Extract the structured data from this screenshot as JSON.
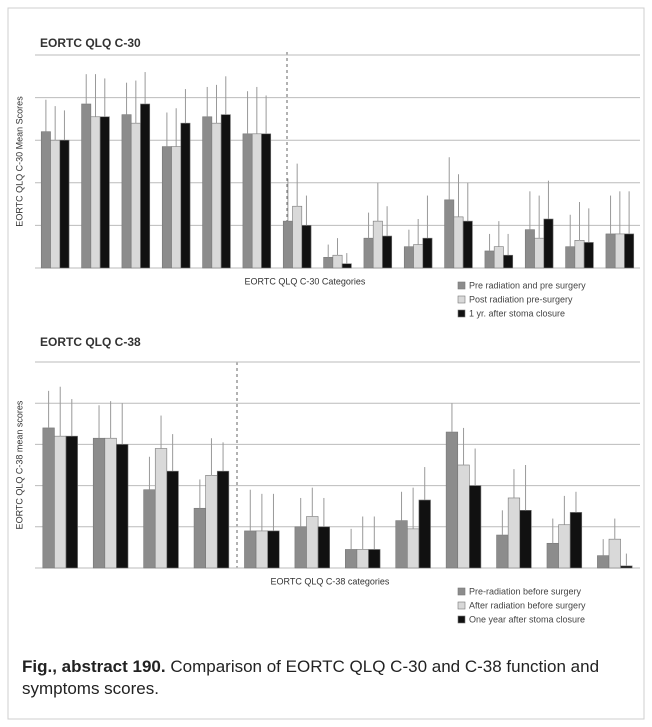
{
  "chart_data": [
    {
      "type": "bar",
      "title": "EORTC QLQ C-30",
      "ylabel": "EORTC QLQ C-30 Mean Scores",
      "xlabel": "EORTC QLQ C-30 Categories",
      "categories": [
        null,
        null,
        null,
        null,
        null,
        null,
        null,
        null,
        null,
        null,
        null,
        null,
        null,
        null,
        null
      ],
      "ylim": [
        0,
        100
      ],
      "gridlines": [
        0,
        20,
        40,
        60,
        80,
        100
      ],
      "series": [
        {
          "name": "Pre radiation and pre surgery",
          "color": "#8c8c8c",
          "values": [
            64,
            77,
            72,
            57,
            71,
            63,
            22,
            5,
            14,
            10,
            32,
            8,
            18,
            10,
            16
          ],
          "errors": [
            15,
            14,
            15,
            16,
            14,
            20,
            20,
            6,
            12,
            8,
            20,
            8,
            18,
            15,
            18
          ]
        },
        {
          "name": "Post radiation pre-surgery",
          "color": "#d9d9d9",
          "values": [
            60,
            71,
            68,
            57,
            68,
            63,
            29,
            6,
            22,
            11,
            24,
            10,
            14,
            13,
            16
          ],
          "errors": [
            16,
            20,
            20,
            18,
            18,
            22,
            20,
            8,
            18,
            12,
            20,
            12,
            20,
            18,
            20
          ]
        },
        {
          "name": "1 yr. after stoma closure",
          "color": "#111111",
          "values": [
            60,
            71,
            77,
            68,
            72,
            63,
            20,
            2,
            15,
            14,
            22,
            6,
            23,
            12,
            16
          ],
          "errors": [
            14,
            18,
            15,
            16,
            18,
            18,
            14,
            5,
            14,
            20,
            18,
            10,
            18,
            16,
            20
          ]
        }
      ]
    },
    {
      "type": "bar",
      "title": "EORTC QLQ C-38",
      "ylabel": "EORTC QLQ C-38 mean scores",
      "xlabel": "EORTC QLQ C-38 categories",
      "categories": [
        null,
        null,
        null,
        null,
        null,
        null,
        null,
        null,
        null,
        null,
        null,
        null
      ],
      "ylim": [
        0,
        100
      ],
      "gridlines": [
        0,
        20,
        40,
        60,
        80,
        100
      ],
      "series": [
        {
          "name": "Pre-radiation before surgery",
          "color": "#8c8c8c",
          "values": [
            68,
            63,
            38,
            29,
            18,
            20,
            9,
            23,
            66,
            16,
            12,
            6
          ],
          "errors": [
            18,
            16,
            16,
            14,
            20,
            14,
            10,
            14,
            14,
            12,
            12,
            8
          ]
        },
        {
          "name": "After radiation before surgery",
          "color": "#d9d9d9",
          "values": [
            64,
            63,
            58,
            45,
            18,
            25,
            9,
            19,
            50,
            34,
            21,
            14
          ],
          "errors": [
            24,
            18,
            16,
            18,
            18,
            14,
            16,
            20,
            18,
            14,
            14,
            10
          ]
        },
        {
          "name": "One year after stoma closure",
          "color": "#111111",
          "values": [
            64,
            60,
            47,
            47,
            18,
            20,
            9,
            33,
            40,
            28,
            27,
            1
          ],
          "errors": [
            18,
            20,
            18,
            14,
            18,
            14,
            16,
            16,
            18,
            22,
            10,
            6
          ]
        }
      ]
    }
  ],
  "caption": {
    "label": "Fig., abstract 190.",
    "text": "Comparison of EORTC QLQ C-30 and C-38 function and symptoms scores."
  }
}
